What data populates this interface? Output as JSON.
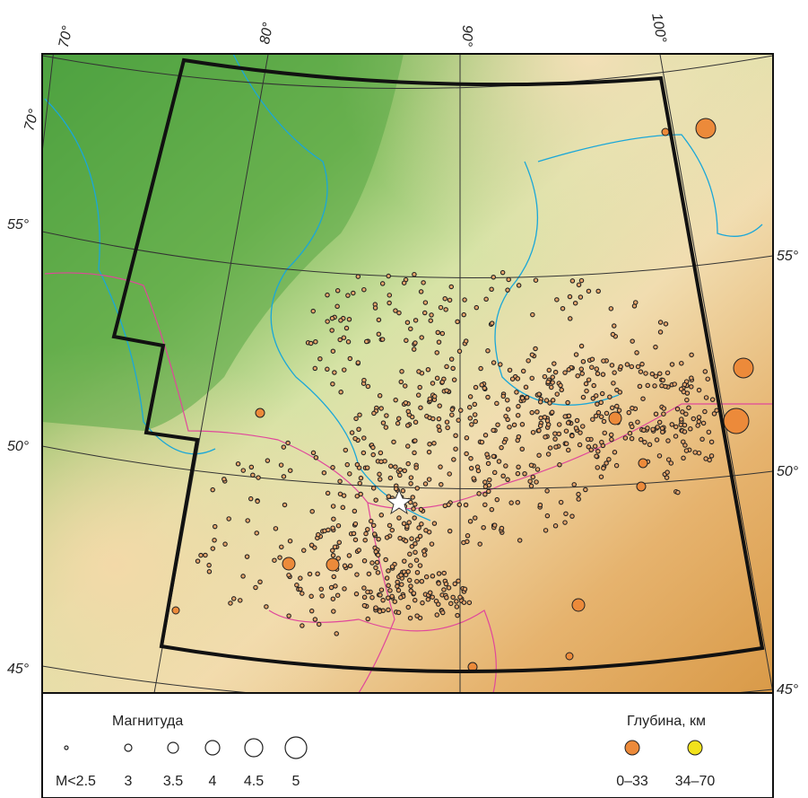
{
  "graticule": {
    "top": [
      "70°",
      "80°",
      "90°",
      "100°"
    ],
    "left": [
      "70°",
      "55°",
      "50°",
      "45°"
    ],
    "right": [
      "55°",
      "50°",
      "45°"
    ]
  },
  "legend": {
    "magnitude": {
      "title": "Магнитуда",
      "labels": [
        "M<2.5",
        "3",
        "3.5",
        "4",
        "4.5",
        "5"
      ]
    },
    "depth": {
      "title": "Глубина, км",
      "labels": [
        "0–33",
        "34–70"
      ]
    }
  }
}
